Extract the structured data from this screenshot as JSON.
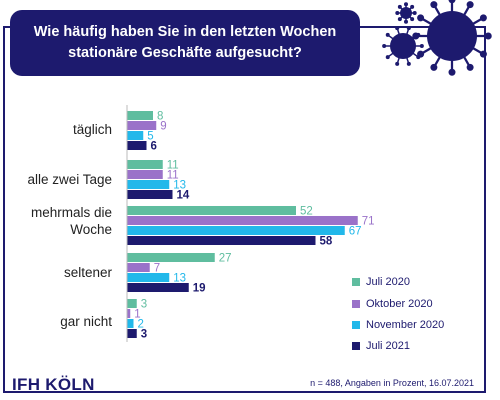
{
  "header": {
    "title_line1": "Wie häufig haben Sie in den letzten Wochen",
    "title_line2": "stationäre Geschäfte aufgesucht?"
  },
  "footer": {
    "logo": "IFH KÖLN",
    "note": "n = 488, Angaben in Prozent, 16.07.2021"
  },
  "colors": {
    "Juli 2020": "#5fbd9f",
    "Oktober 2020": "#9a72c9",
    "November 2020": "#22b8ea",
    "Juli 2021": "#1d1a6e",
    "frame": "#1d1a6e"
  },
  "chart_data": {
    "type": "bar",
    "orientation": "horizontal",
    "title": "Wie häufig haben Sie in den letzten Wochen stationäre Geschäfte aufgesucht?",
    "categories": [
      "täglich",
      "alle zwei Tage",
      "mehrmals die Woche",
      "seltener",
      "gar nicht"
    ],
    "series": [
      {
        "name": "Juli 2020",
        "values": [
          8,
          11,
          52,
          27,
          3
        ]
      },
      {
        "name": "Oktober 2020",
        "values": [
          9,
          11,
          71,
          7,
          1
        ]
      },
      {
        "name": "November 2020",
        "values": [
          5,
          13,
          67,
          13,
          2
        ]
      },
      {
        "name": "Juli 2021",
        "values": [
          6,
          14,
          58,
          19,
          3
        ]
      }
    ],
    "xlim": [
      0,
      80
    ],
    "grid": false,
    "legend_position": "bottom-right"
  }
}
